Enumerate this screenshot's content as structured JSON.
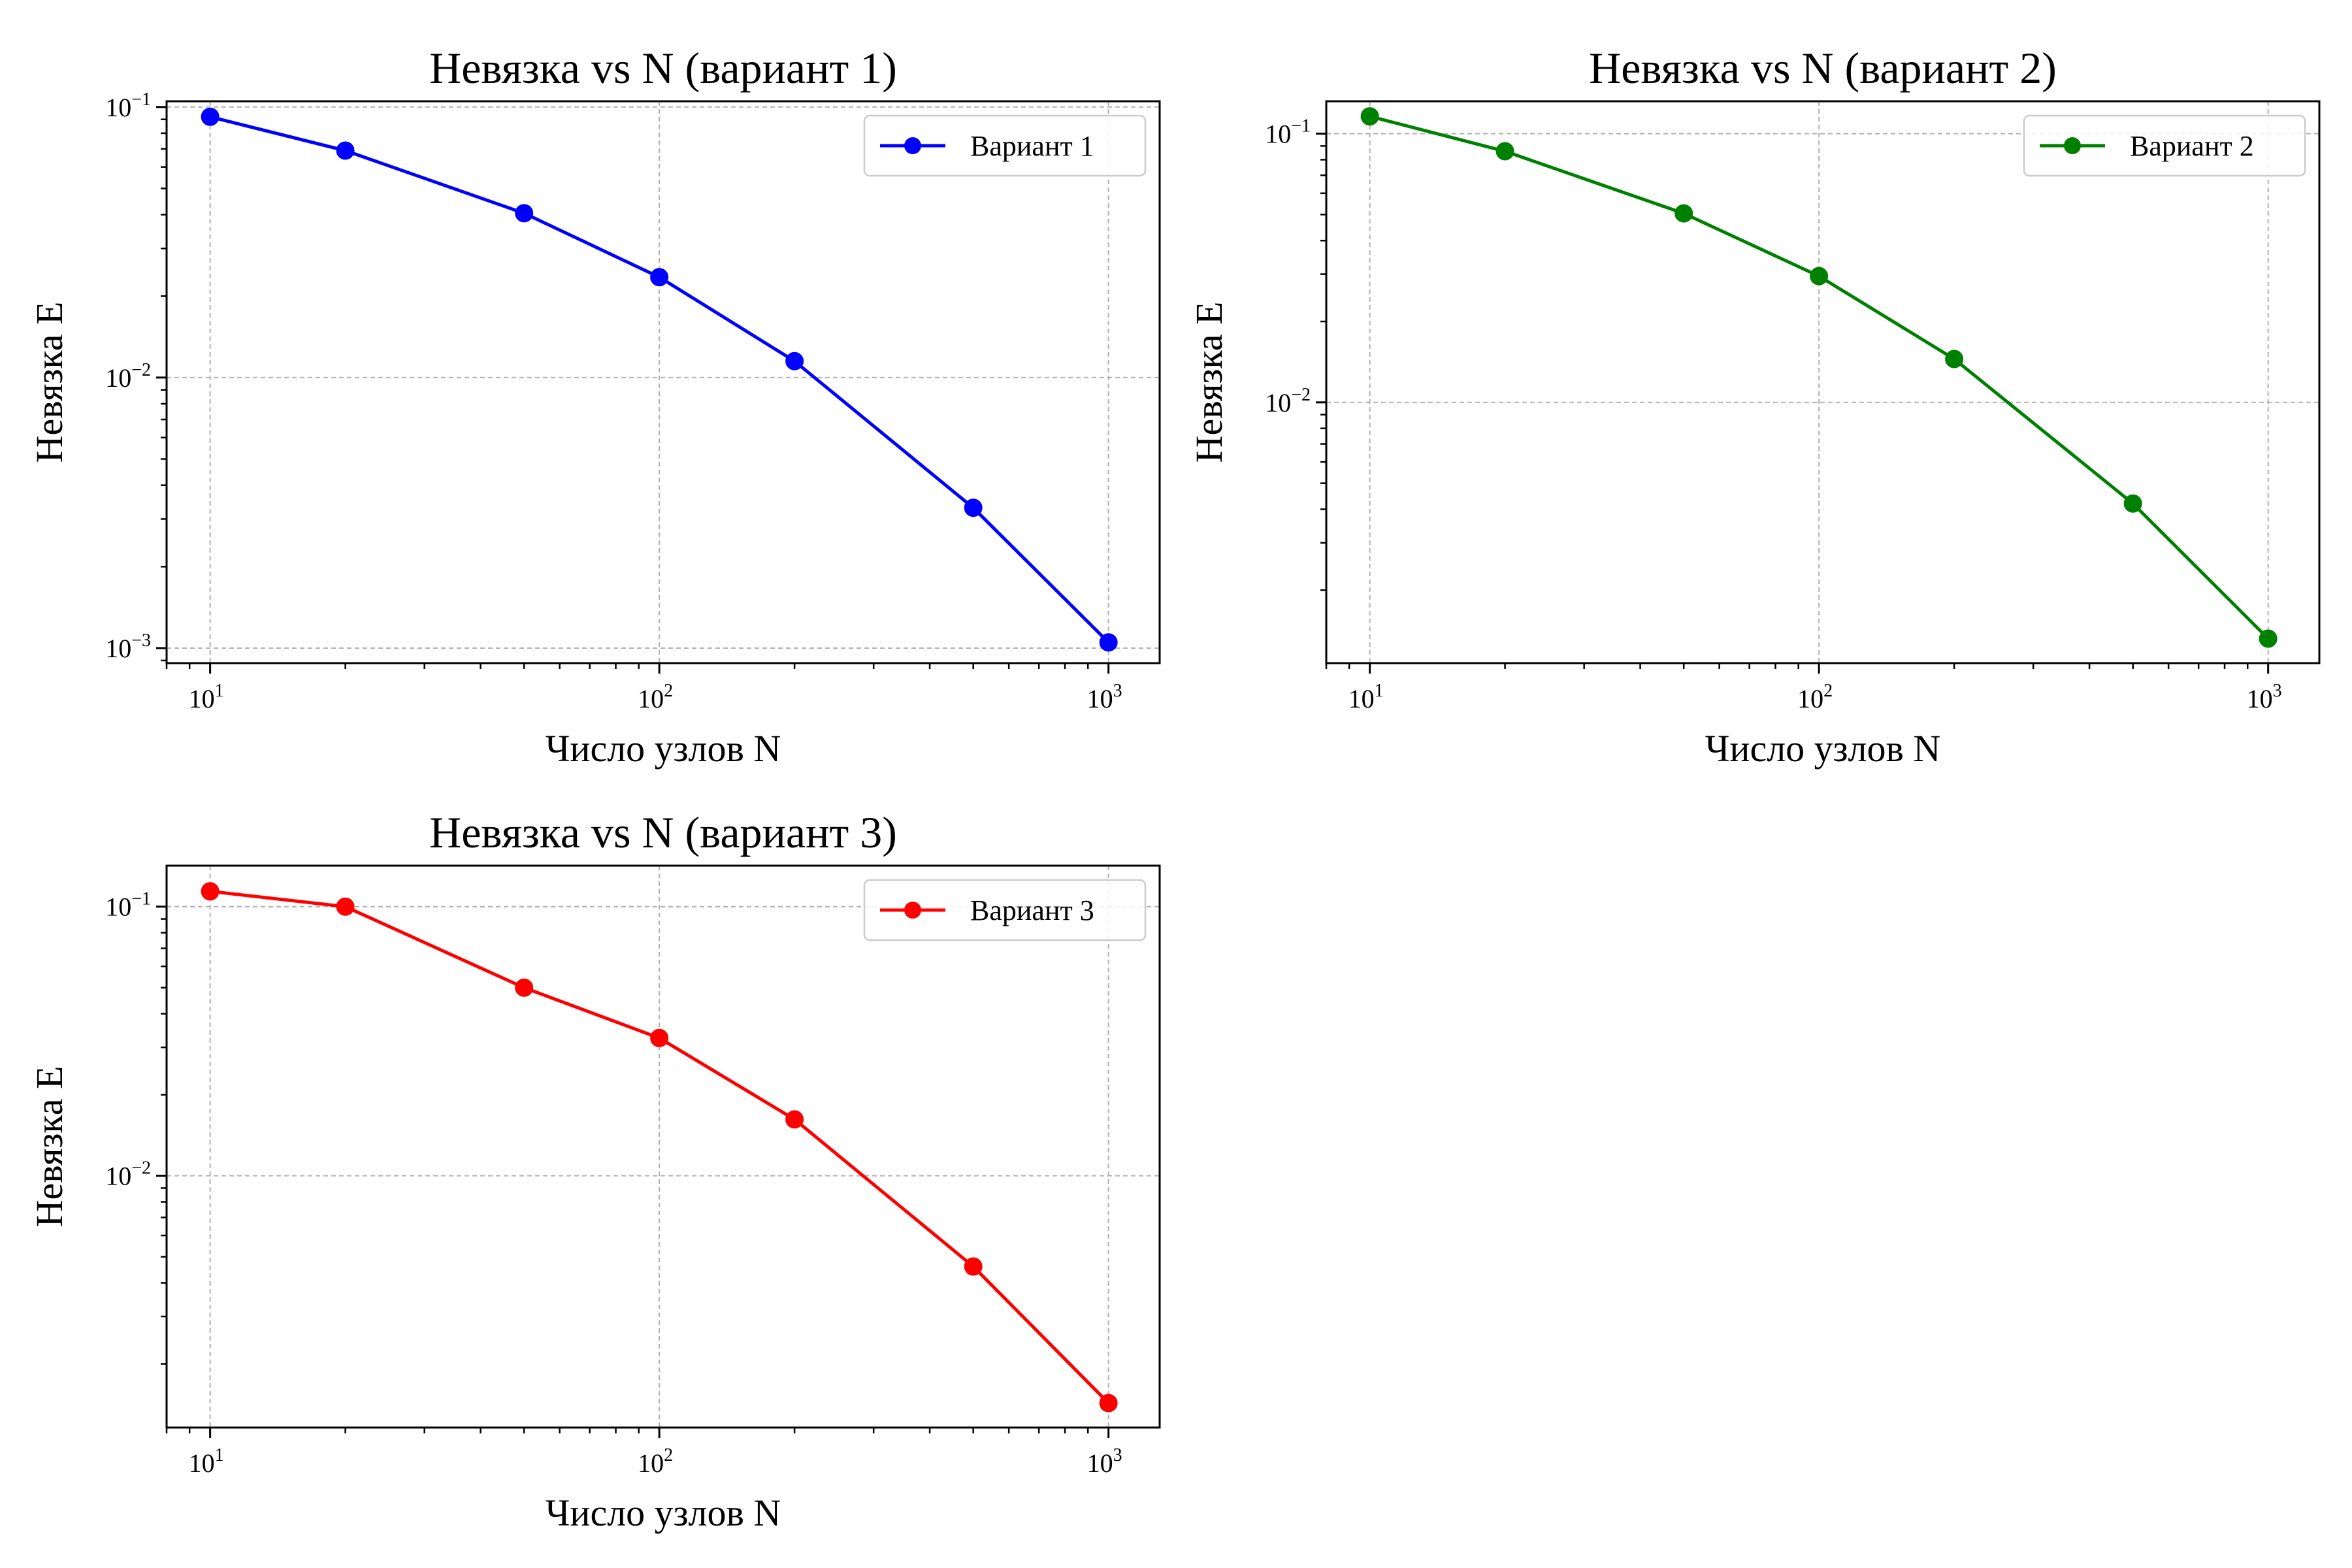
{
  "chart_data": [
    {
      "type": "line",
      "title": "Невязка vs N (вариант 1)",
      "xlabel": "Число узлов N",
      "ylabel": "Невязка E",
      "xscale": "log",
      "yscale": "log",
      "xlim": [
        8,
        1300
      ],
      "ylim": [
        0.00088,
        0.105
      ],
      "grid": true,
      "legend_position": "top-right",
      "x_ticks": [
        {
          "base": "10",
          "exp": "1"
        },
        {
          "base": "10",
          "exp": "2"
        },
        {
          "base": "10",
          "exp": "3"
        }
      ],
      "y_ticks": [
        {
          "base": "10",
          "exp": "−1"
        },
        {
          "base": "10",
          "exp": "−2"
        },
        {
          "base": "10",
          "exp": "−3"
        }
      ],
      "series": [
        {
          "name": "Вариант 1",
          "color": "#0000ff",
          "x": [
            10,
            20,
            50,
            100,
            200,
            500,
            1000
          ],
          "y": [
            0.092,
            0.069,
            0.0405,
            0.0235,
            0.0115,
            0.0033,
            0.00105
          ]
        }
      ]
    },
    {
      "type": "line",
      "title": "Невязка vs N (вариант 2)",
      "xlabel": "Число узлов N",
      "ylabel": "Невязка E",
      "xscale": "log",
      "yscale": "log",
      "xlim": [
        8,
        1300
      ],
      "ylim": [
        0.00107,
        0.132
      ],
      "grid": true,
      "legend_position": "top-right",
      "x_ticks": [
        {
          "base": "10",
          "exp": "1"
        },
        {
          "base": "10",
          "exp": "2"
        },
        {
          "base": "10",
          "exp": "3"
        }
      ],
      "y_ticks": [
        {
          "base": "10",
          "exp": "−1"
        },
        {
          "base": "10",
          "exp": "−2"
        }
      ],
      "series": [
        {
          "name": "Вариант 2",
          "color": "#008000",
          "x": [
            10,
            20,
            50,
            100,
            200,
            500,
            1000
          ],
          "y": [
            0.116,
            0.086,
            0.0505,
            0.0295,
            0.0145,
            0.0042,
            0.00132
          ]
        }
      ]
    },
    {
      "type": "line",
      "title": "Невязка vs N (вариант 3)",
      "xlabel": "Число узлов N",
      "ylabel": "Невязка E",
      "xscale": "log",
      "yscale": "log",
      "xlim": [
        8,
        1300
      ],
      "ylim": [
        0.00116,
        0.142
      ],
      "grid": true,
      "legend_position": "top-right",
      "x_ticks": [
        {
          "base": "10",
          "exp": "1"
        },
        {
          "base": "10",
          "exp": "2"
        },
        {
          "base": "10",
          "exp": "3"
        }
      ],
      "y_ticks": [
        {
          "base": "10",
          "exp": "−1"
        },
        {
          "base": "10",
          "exp": "−2"
        }
      ],
      "series": [
        {
          "name": "Вариант 3",
          "color": "#ff0000",
          "x": [
            10,
            20,
            50,
            100,
            200,
            500,
            1000
          ],
          "y": [
            0.114,
            0.1,
            0.05,
            0.0325,
            0.0162,
            0.0046,
            0.00143
          ]
        }
      ]
    }
  ]
}
